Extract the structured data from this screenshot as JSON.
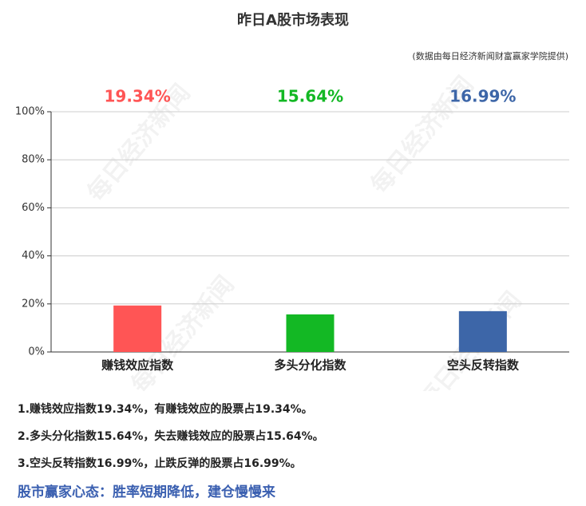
{
  "chart_data": {
    "type": "bar",
    "title": "昨日A股市场表现",
    "subtitle": "(数据由每日经济新闻财富赢家学院提供)",
    "watermark": "每日经济新闻",
    "categories": [
      "赚钱效应指数",
      "多头分化指数",
      "空头反转指数"
    ],
    "values": [
      19.34,
      15.64,
      16.99
    ],
    "value_labels": [
      "19.34%",
      "15.64%",
      "16.99%"
    ],
    "colors": [
      "#ff5555",
      "#13b824",
      "#3d66a8"
    ],
    "ylim": [
      0,
      100
    ],
    "yticks": [
      {
        "value": 0,
        "label": "0%"
      },
      {
        "value": 20,
        "label": "20%"
      },
      {
        "value": 40,
        "label": "40%"
      },
      {
        "value": 60,
        "label": "60%"
      },
      {
        "value": 80,
        "label": "80%"
      },
      {
        "value": 100,
        "label": "100%"
      }
    ],
    "grid": true
  },
  "notes": [
    "1.赚钱效应指数19.34%，有赚钱效应的股票占19.34%。",
    "2.多头分化指数15.64%，失去赚钱效应的股票占15.64%。",
    "3.空头反转指数16.99%，止跌反弹的股票占16.99%。"
  ],
  "footer": "股市赢家心态：胜率短期降低，建仓慢慢来"
}
